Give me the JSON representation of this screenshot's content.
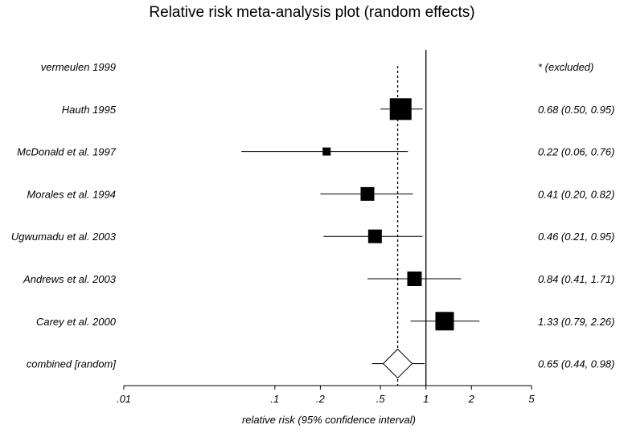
{
  "title": "Relative risk meta-analysis plot (random effects)",
  "chart_data": {
    "type": "forest",
    "title": "Relative risk meta-analysis plot (random effects)",
    "xlabel": "relative risk (95% confidence interval)",
    "x_scale": "log",
    "xlim": [
      0.01,
      5
    ],
    "x_ticks": [
      {
        "value": 0.01,
        "label": ".01"
      },
      {
        "value": 0.1,
        "label": ".1"
      },
      {
        "value": 0.2,
        "label": ".2"
      },
      {
        "value": 0.5,
        "label": ".5"
      },
      {
        "value": 1,
        "label": "1"
      },
      {
        "value": 2,
        "label": "2"
      },
      {
        "value": 5,
        "label": "5"
      }
    ],
    "reference_line": 1,
    "pooled_line": 0.65,
    "studies": [
      {
        "name": "vermeulen 1999",
        "estimate_text": "* (excluded)",
        "rr": null,
        "lower": null,
        "upper": null,
        "weight": null
      },
      {
        "name": "Hauth 1995",
        "estimate_text": "0.68 (0.50, 0.95)",
        "rr": 0.68,
        "lower": 0.5,
        "upper": 0.95,
        "weight": 27
      },
      {
        "name": "McDonald et al. 1997",
        "estimate_text": "0.22 (0.06, 0.76)",
        "rr": 0.22,
        "lower": 0.06,
        "upper": 0.76,
        "weight": 10
      },
      {
        "name": "Morales et al. 1994",
        "estimate_text": "0.41 (0.20, 0.82)",
        "rr": 0.41,
        "lower": 0.2,
        "upper": 0.82,
        "weight": 17
      },
      {
        "name": "Ugwumadu et al. 2003",
        "estimate_text": "0.46 (0.21, 0.95)",
        "rr": 0.46,
        "lower": 0.21,
        "upper": 0.95,
        "weight": 17
      },
      {
        "name": "Andrews et al. 2003",
        "estimate_text": "0.84 (0.41, 1.71)",
        "rr": 0.84,
        "lower": 0.41,
        "upper": 1.71,
        "weight": 18
      },
      {
        "name": "Carey et al. 2000",
        "estimate_text": "1.33 (0.79, 2.26)",
        "rr": 1.33,
        "lower": 0.79,
        "upper": 2.26,
        "weight": 23
      }
    ],
    "combined": {
      "name": "combined [random]",
      "estimate_text": "0.65 (0.44, 0.98)",
      "rr": 0.65,
      "lower": 0.44,
      "upper": 0.98
    }
  }
}
